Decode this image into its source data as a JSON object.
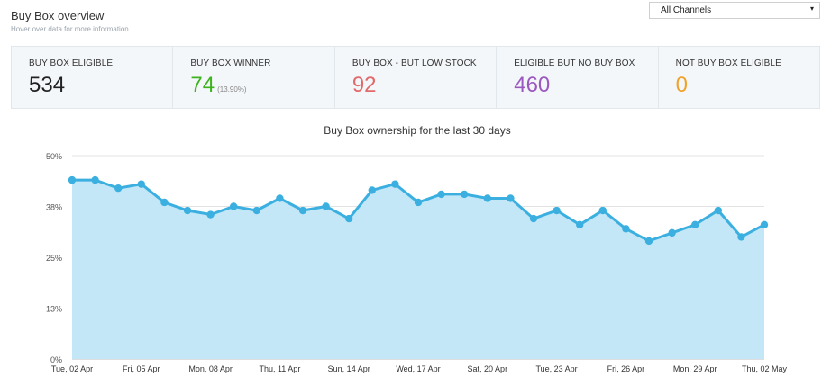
{
  "header": {
    "title": "Buy Box overview",
    "subtitle": "Hover over data for more information"
  },
  "channel_select": {
    "value": "All Channels",
    "caret": "▾"
  },
  "stats": [
    {
      "label": "BUY BOX ELIGIBLE",
      "value": "534",
      "color": "#222222"
    },
    {
      "label": "BUY BOX WINNER",
      "value": "74",
      "pct": "(13.90%)",
      "color": "#3cb31e"
    },
    {
      "label": "BUY BOX - BUT LOW STOCK",
      "value": "92",
      "color": "#e16a6a"
    },
    {
      "label": "ELIGIBLE BUT NO BUY BOX",
      "value": "460",
      "color": "#9b59c0"
    },
    {
      "label": "NOT BUY BOX ELIGIBLE",
      "value": "0",
      "color": "#f0a22b"
    }
  ],
  "chart_data": {
    "type": "area",
    "title": "Buy Box ownership for the last 30 days",
    "xlabel": "",
    "ylabel": "",
    "ylim": [
      0,
      50
    ],
    "y_ticks": [
      {
        "value": 0,
        "label": "0%"
      },
      {
        "value": 12.5,
        "label": "13%"
      },
      {
        "value": 25,
        "label": "25%"
      },
      {
        "value": 37.5,
        "label": "38%"
      },
      {
        "value": 50,
        "label": "50%"
      }
    ],
    "x_tick_labels": [
      {
        "index": 0,
        "label": "Tue, 02 Apr"
      },
      {
        "index": 3,
        "label": "Fri, 05 Apr"
      },
      {
        "index": 6,
        "label": "Mon, 08 Apr"
      },
      {
        "index": 9,
        "label": "Thu, 11 Apr"
      },
      {
        "index": 12,
        "label": "Sun, 14 Apr"
      },
      {
        "index": 15,
        "label": "Wed, 17 Apr"
      },
      {
        "index": 18,
        "label": "Sat, 20 Apr"
      },
      {
        "index": 21,
        "label": "Tue, 23 Apr"
      },
      {
        "index": 24,
        "label": "Fri, 26 Apr"
      },
      {
        "index": 27,
        "label": "Mon, 29 Apr"
      },
      {
        "index": 30,
        "label": "Thu, 02 May"
      }
    ],
    "grid": true,
    "series_color": "#3bb0e0",
    "fill_color": "#c3e7f7",
    "values": [
      44,
      44,
      42,
      43,
      38.5,
      36.5,
      35.5,
      37.5,
      36.5,
      39.5,
      36.5,
      37.5,
      34.5,
      41.5,
      43,
      38.5,
      40.5,
      40.5,
      39.5,
      39.5,
      34.5,
      36.5,
      33,
      36.5,
      32,
      29,
      31,
      33,
      36.5,
      30,
      33
    ]
  }
}
